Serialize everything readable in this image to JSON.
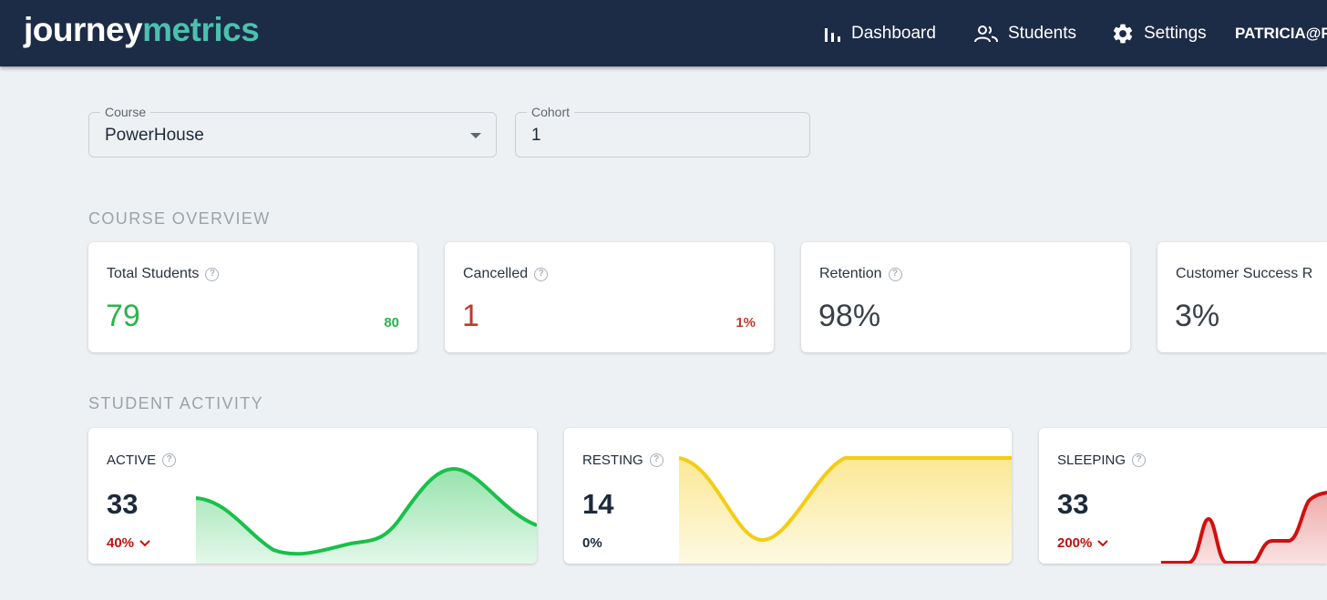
{
  "header": {
    "logo_part1": "journey",
    "logo_part2": "metrics",
    "nav": [
      {
        "label": "Dashboard",
        "icon": "bar-chart-icon"
      },
      {
        "label": "Students",
        "icon": "people-icon"
      },
      {
        "label": "Settings",
        "icon": "gear-icon"
      }
    ],
    "user": "PATRICIA@F"
  },
  "filters": {
    "course": {
      "label": "Course",
      "value": "PowerHouse"
    },
    "cohort": {
      "label": "Cohort",
      "value": "1"
    }
  },
  "overview": {
    "heading": "COURSE OVERVIEW",
    "cards": [
      {
        "title": "Total Students",
        "value": "79",
        "side": "80",
        "value_color": "#2bb54b",
        "side_color": "#2bb54b"
      },
      {
        "title": "Cancelled",
        "value": "1",
        "side": "1%",
        "value_color": "#c0392b",
        "side_color": "#c0392b"
      },
      {
        "title": "Retention",
        "value": "98%",
        "side": "",
        "value_color": "#3a4048",
        "side_color": "#3a4048"
      },
      {
        "title": "Customer Success R",
        "value": "3%",
        "side": "",
        "value_color": "#3a4048",
        "side_color": "#3a4048"
      }
    ]
  },
  "activity": {
    "heading": "STUDENT ACTIVITY",
    "cards": [
      {
        "title": "ACTIVE",
        "value": "33",
        "change": "40%",
        "change_color": "#c0120c",
        "trend": "down",
        "line_color": "#19c04a"
      },
      {
        "title": "RESTING",
        "value": "14",
        "change": "0%",
        "change_color": "#1e2a3b",
        "trend": "none",
        "line_color": "#f5cc13"
      },
      {
        "title": "SLEEPING",
        "value": "33",
        "change": "200%",
        "change_color": "#c0120c",
        "trend": "down",
        "line_color": "#d10f0f"
      }
    ]
  }
}
